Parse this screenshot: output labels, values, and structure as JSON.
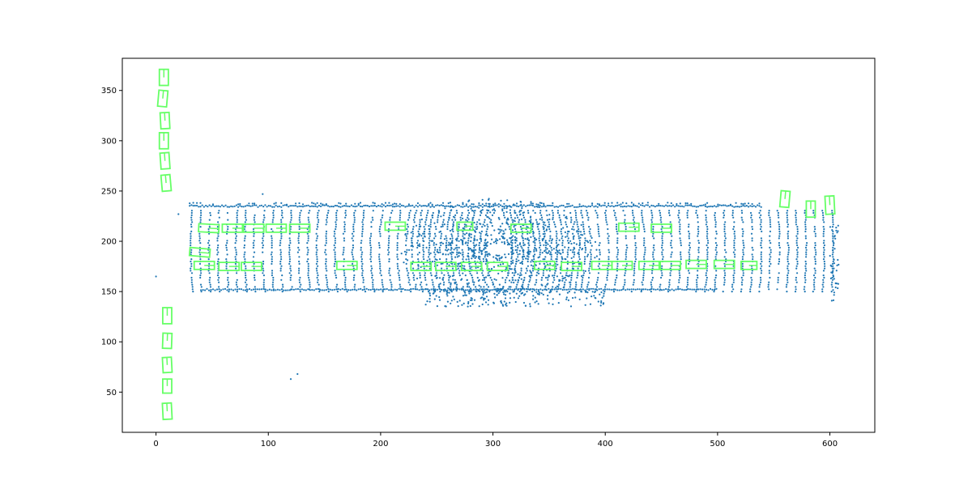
{
  "chart_data": {
    "type": "scatter",
    "title": "",
    "xlabel": "",
    "ylabel": "",
    "xlim": [
      -30,
      640
    ],
    "ylim": [
      10,
      382
    ],
    "xticks": [
      0,
      100,
      200,
      300,
      400,
      500,
      600
    ],
    "yticks": [
      50,
      100,
      150,
      200,
      250,
      300,
      350
    ],
    "xtick_labels": [
      "0",
      "100",
      "200",
      "300",
      "400",
      "500",
      "600"
    ],
    "ytick_labels": [
      "50",
      "100",
      "150",
      "200",
      "250",
      "300",
      "350"
    ],
    "grid": false,
    "legend": "none",
    "colors": {
      "points": "#1f77b4",
      "boxes": "#66ff66",
      "axes": "#000000"
    },
    "point_cloud": {
      "description_shape": "bird's-eye LiDAR point cloud",
      "x_range": [
        25,
        610
      ],
      "y_range": [
        130,
        252
      ],
      "walls": [
        {
          "x": [
            30,
            540
          ],
          "y": 235
        },
        {
          "x": [
            40,
            500
          ],
          "y": 152
        }
      ],
      "isolated_points": [
        [
          0,
          165
        ],
        [
          120,
          63
        ],
        [
          126,
          68
        ],
        [
          20,
          227
        ],
        [
          95,
          247
        ]
      ]
    },
    "boxes": [
      {
        "cx": 7,
        "cy": 363,
        "w": 8,
        "h": 16,
        "angle": 0
      },
      {
        "cx": 6,
        "cy": 342,
        "w": 8,
        "h": 16,
        "angle": 5
      },
      {
        "cx": 8,
        "cy": 320,
        "w": 8,
        "h": 16,
        "angle": -3
      },
      {
        "cx": 7,
        "cy": 300,
        "w": 8,
        "h": 16,
        "angle": 0
      },
      {
        "cx": 8,
        "cy": 280,
        "w": 8,
        "h": 16,
        "angle": -4
      },
      {
        "cx": 9,
        "cy": 258,
        "w": 8,
        "h": 16,
        "angle": -5
      },
      {
        "cx": 10,
        "cy": 126,
        "w": 8,
        "h": 16,
        "angle": 0
      },
      {
        "cx": 10,
        "cy": 101,
        "w": 8,
        "h": 15,
        "angle": 2
      },
      {
        "cx": 10,
        "cy": 77,
        "w": 8,
        "h": 15,
        "angle": -3
      },
      {
        "cx": 10,
        "cy": 56,
        "w": 8,
        "h": 14,
        "angle": 0
      },
      {
        "cx": 10,
        "cy": 31,
        "w": 8,
        "h": 16,
        "angle": -3
      },
      {
        "cx": 47,
        "cy": 213,
        "w": 18,
        "h": 8,
        "angle": 3
      },
      {
        "cx": 68,
        "cy": 213,
        "w": 18,
        "h": 8,
        "angle": 0
      },
      {
        "cx": 87,
        "cy": 213,
        "w": 18,
        "h": 8,
        "angle": 0
      },
      {
        "cx": 107,
        "cy": 213,
        "w": 18,
        "h": 8,
        "angle": 0
      },
      {
        "cx": 128,
        "cy": 213,
        "w": 18,
        "h": 8,
        "angle": 0
      },
      {
        "cx": 213,
        "cy": 215,
        "w": 18,
        "h": 8,
        "angle": 0
      },
      {
        "cx": 275,
        "cy": 215,
        "w": 14,
        "h": 8,
        "angle": 0
      },
      {
        "cx": 325,
        "cy": 213,
        "w": 18,
        "h": 8,
        "angle": 0
      },
      {
        "cx": 421,
        "cy": 214,
        "w": 18,
        "h": 8,
        "angle": 0
      },
      {
        "cx": 450,
        "cy": 213,
        "w": 18,
        "h": 8,
        "angle": 0
      },
      {
        "cx": 39,
        "cy": 189,
        "w": 18,
        "h": 8,
        "angle": 5
      },
      {
        "cx": 43,
        "cy": 176,
        "w": 18,
        "h": 8,
        "angle": 0
      },
      {
        "cx": 65,
        "cy": 175,
        "w": 18,
        "h": 8,
        "angle": 0
      },
      {
        "cx": 85,
        "cy": 175,
        "w": 18,
        "h": 8,
        "angle": 0
      },
      {
        "cx": 170,
        "cy": 176,
        "w": 18,
        "h": 8,
        "angle": 0
      },
      {
        "cx": 236,
        "cy": 175,
        "w": 18,
        "h": 8,
        "angle": 0
      },
      {
        "cx": 258,
        "cy": 175,
        "w": 18,
        "h": 8,
        "angle": 0
      },
      {
        "cx": 281,
        "cy": 175,
        "w": 18,
        "h": 8,
        "angle": 0
      },
      {
        "cx": 304,
        "cy": 175,
        "w": 18,
        "h": 8,
        "angle": 0
      },
      {
        "cx": 346,
        "cy": 176,
        "w": 18,
        "h": 8,
        "angle": 0
      },
      {
        "cx": 370,
        "cy": 175,
        "w": 18,
        "h": 8,
        "angle": 0
      },
      {
        "cx": 397,
        "cy": 176,
        "w": 18,
        "h": 8,
        "angle": 0
      },
      {
        "cx": 415,
        "cy": 176,
        "w": 18,
        "h": 8,
        "angle": 0
      },
      {
        "cx": 439,
        "cy": 176,
        "w": 18,
        "h": 8,
        "angle": 0
      },
      {
        "cx": 458,
        "cy": 176,
        "w": 18,
        "h": 8,
        "angle": 0
      },
      {
        "cx": 481,
        "cy": 177,
        "w": 18,
        "h": 8,
        "angle": 0
      },
      {
        "cx": 506,
        "cy": 177,
        "w": 18,
        "h": 8,
        "angle": 0
      },
      {
        "cx": 528,
        "cy": 176,
        "w": 14,
        "h": 8,
        "angle": 0
      },
      {
        "cx": 560,
        "cy": 242,
        "w": 8,
        "h": 16,
        "angle": 5
      },
      {
        "cx": 583,
        "cy": 232,
        "w": 8,
        "h": 16,
        "angle": 0
      },
      {
        "cx": 600,
        "cy": 236,
        "w": 8,
        "h": 18,
        "angle": -3
      }
    ]
  }
}
